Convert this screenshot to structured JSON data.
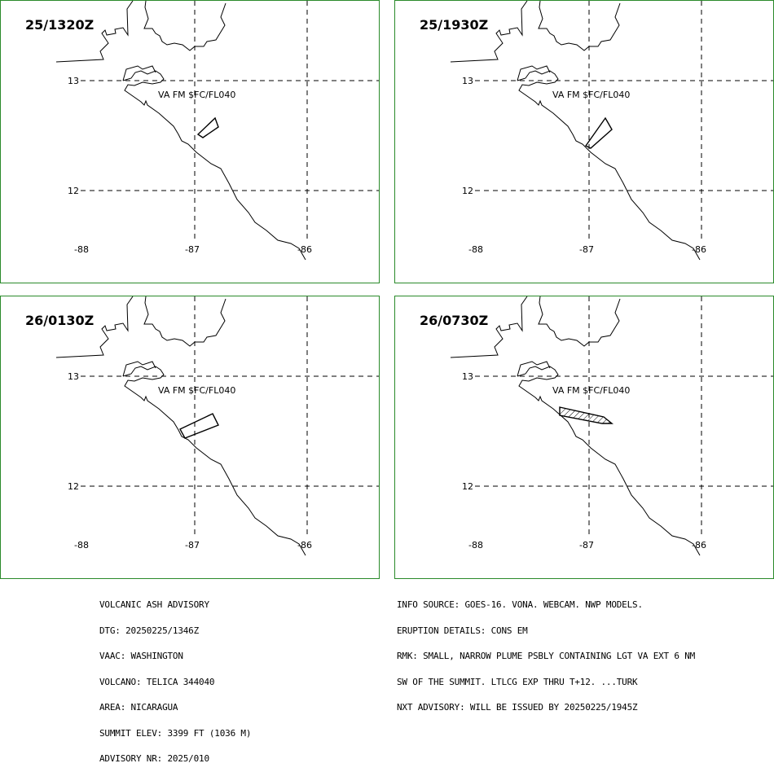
{
  "panels": [
    {
      "time": "25/1320Z",
      "annotation": "VA FM $FC/FL040"
    },
    {
      "time": "25/1930Z",
      "annotation": "VA FM $FC/FL040"
    },
    {
      "time": "26/0130Z",
      "annotation": "VA FM $FC/FL040"
    },
    {
      "time": "26/0730Z",
      "annotation": "VA FM $FC/FL040"
    }
  ],
  "map": {
    "lat_labels": [
      "13",
      "12"
    ],
    "lon_labels": [
      "-88",
      "-87",
      "-86"
    ]
  },
  "advisory_left": [
    "VOLCANIC ASH ADVISORY",
    "DTG: 20250225/1346Z",
    "VAAC: WASHINGTON",
    "VOLCANO: TELICA 344040",
    "AREA: NICARAGUA",
    "SUMMIT ELEV: 3399 FT (1036 M)",
    "ADVISORY NR: 2025/010"
  ],
  "advisory_right": [
    "INFO SOURCE: GOES-16. VONA. WEBCAM. NWP MODELS.",
    "ERUPTION DETAILS: CONS EM",
    "RMK: SMALL, NARROW PLUME PSBLY CONTAINING LGT VA EXT 6 NM",
    "SW OF THE SUMMIT. LTLCG EXP THRU T+12. ...TURK",
    "NXT ADVISORY: WILL BE ISSUED BY 20250225/1945Z"
  ],
  "colors": {
    "panel_border": "#2a8a2a",
    "ink": "#000000"
  }
}
